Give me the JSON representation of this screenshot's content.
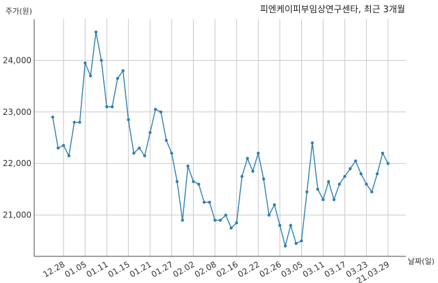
{
  "chart_data": {
    "type": "line",
    "title": "피엔케이피부임상연구센타, 최근 3개월",
    "ylabel": "주가(원)",
    "xlabel": "날짜(일)",
    "ylim": [
      20200,
      24800
    ],
    "y_ticks": [
      21000,
      22000,
      23000,
      24000
    ],
    "y_tick_labels": [
      "21,000",
      "22,000",
      "23,000",
      "24,000"
    ],
    "x_tick_labels": [
      "12.28",
      "01.05",
      "01.11",
      "01.15",
      "01.21",
      "01.27",
      "02.02",
      "02.08",
      "02.16",
      "02.22",
      "02.26",
      "03.05",
      "03.11",
      "03.17",
      "03.23",
      "21.03.29"
    ],
    "x_tick_index": [
      2,
      6,
      10,
      14,
      18,
      22,
      26,
      30,
      34,
      38,
      42,
      46,
      50,
      54,
      58,
      62
    ],
    "grid": true,
    "line_color": "#2c7fb0",
    "series": [
      {
        "values": [
          22900,
          22300,
          22350,
          22150,
          22800,
          22800,
          23950,
          23700,
          24550,
          24000,
          23100,
          23100,
          23650,
          23800,
          22850,
          22200,
          22300,
          22150,
          22600,
          23050,
          23000,
          22450,
          22200,
          21650,
          20900,
          21950,
          21650,
          21600,
          21250,
          21250,
          20900,
          20900,
          21000,
          20750,
          20850,
          21750,
          22100,
          21850,
          22200,
          21700,
          21000,
          21200,
          20800,
          20400,
          20800,
          20450,
          20500,
          21450,
          22400,
          21500,
          21300,
          21650,
          21300,
          21600,
          21750,
          21900,
          22050,
          21800,
          21600,
          21450,
          21800,
          22200,
          22000
        ]
      }
    ]
  }
}
